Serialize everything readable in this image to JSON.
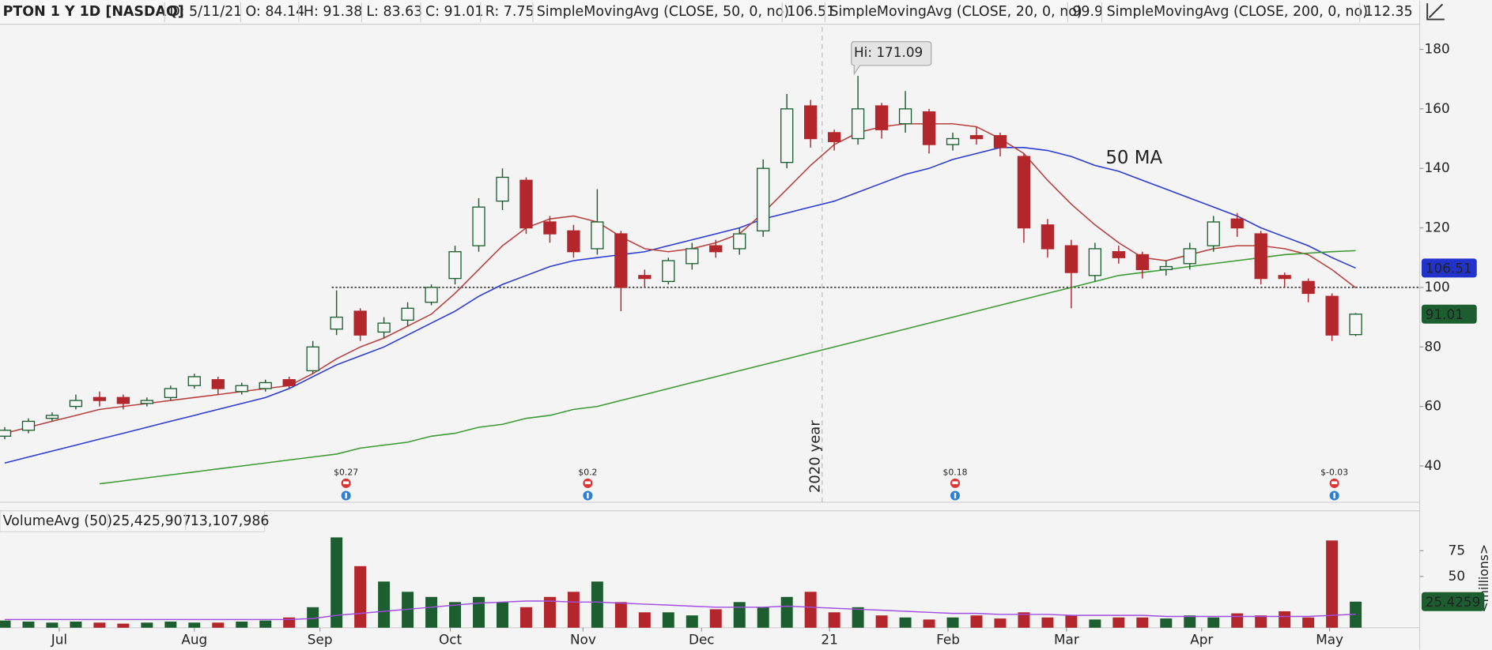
{
  "header": {
    "symbol": "PTON 1 Y 1D [NASDAQ]",
    "date": "D: 5/11/21",
    "open": "O: 84.14",
    "high": "H: 91.38",
    "low": "L: 83.63",
    "close": "C: 91.01",
    "range": "R: 7.75"
  },
  "chart_data": [
    {
      "type": "candlestick",
      "open": [
        50,
        52,
        56,
        60,
        63,
        63,
        61,
        63,
        67,
        69,
        65,
        66,
        69,
        72,
        86,
        92,
        85,
        89,
        95,
        103,
        114,
        129,
        136,
        122,
        119,
        113,
        118,
        104,
        102,
        108,
        114,
        113,
        119,
        142,
        161,
        152,
        150,
        161,
        155,
        159,
        148,
        151,
        151,
        144,
        121,
        114,
        104,
        112,
        111,
        106,
        108,
        114,
        123,
        118,
        104,
        102,
        97,
        84.14
      ],
      "high": [
        53,
        56,
        58,
        64,
        65,
        64,
        63,
        67,
        71,
        70,
        68,
        69,
        70,
        82,
        99,
        93,
        90,
        95,
        101,
        114,
        130,
        140,
        137,
        124,
        121,
        133,
        119,
        106,
        110,
        115,
        116,
        120,
        143,
        165,
        163,
        153,
        171.09,
        162,
        166,
        160,
        152,
        154,
        152,
        145,
        123,
        116,
        115,
        114,
        112,
        109,
        115,
        124,
        125,
        119,
        105,
        103,
        98,
        91.38
      ],
      "low": [
        49,
        51,
        55,
        59,
        60,
        59,
        60,
        62,
        66,
        64,
        64,
        65,
        66,
        71,
        84,
        82,
        83,
        87,
        94,
        101,
        112,
        126,
        118,
        115,
        110,
        111,
        92,
        100,
        101,
        106,
        110,
        111,
        117,
        140,
        147,
        146,
        148,
        150,
        152,
        145,
        146,
        148,
        144,
        115,
        110,
        93,
        102,
        108,
        103,
        104,
        106,
        112,
        117,
        101,
        100,
        95,
        82,
        83.63
      ],
      "close": [
        52,
        55,
        57,
        62,
        62,
        61,
        62,
        66,
        70,
        66,
        67,
        68,
        67,
        80,
        90,
        84,
        88,
        93,
        100,
        112,
        127,
        137,
        120,
        118,
        112,
        122,
        100,
        103,
        109,
        113,
        112,
        118,
        140,
        160,
        150,
        149,
        160,
        153,
        160,
        148,
        150,
        150,
        147,
        120,
        113,
        105,
        113,
        110,
        106,
        107,
        113,
        122,
        120,
        103,
        103,
        98,
        84,
        91.01
      ],
      "up_color": "#1d5e30",
      "down_color": "#b3262c",
      "lines": [
        {
          "name": "SimpleMovingAvg (CLOSE, 50, 0, no)",
          "color": "#2b3bd6",
          "values": [
            41,
            43,
            45,
            47,
            49,
            51,
            53,
            55,
            57,
            59,
            61,
            63,
            66,
            70,
            74,
            77,
            80,
            84,
            88,
            92,
            97,
            101,
            104,
            107,
            109,
            110,
            111,
            112,
            114,
            116,
            118,
            120,
            123,
            125,
            127,
            129,
            132,
            135,
            138,
            140,
            143,
            145,
            147,
            147,
            146,
            144,
            141,
            139,
            136,
            133,
            130,
            127,
            124,
            120,
            117,
            114,
            110,
            106.51
          ]
        },
        {
          "name": "SimpleMovingAvg (CLOSE, 20, 0, no)",
          "color": "#b8403f",
          "values": [
            51,
            53,
            55,
            57,
            59,
            60,
            61,
            62,
            63,
            64,
            65,
            66,
            67,
            71,
            76,
            80,
            83,
            87,
            91,
            98,
            106,
            114,
            120,
            123,
            124,
            122,
            117,
            113,
            112,
            113,
            115,
            118,
            125,
            133,
            141,
            148,
            152,
            154,
            155,
            155,
            155,
            154,
            150,
            145,
            136,
            128,
            121,
            115,
            110,
            109,
            111,
            113,
            114,
            114,
            113,
            111,
            106,
            99.9
          ]
        },
        {
          "name": "SimpleMovingAvg (CLOSE, 200, 0, no)",
          "color": "#3c9a34",
          "values": [
            null,
            null,
            null,
            null,
            34,
            35,
            36,
            37,
            38,
            39,
            40,
            41,
            42,
            43,
            44,
            46,
            47,
            48,
            50,
            51,
            53,
            54,
            56,
            57,
            59,
            60,
            62,
            64,
            66,
            68,
            70,
            72,
            74,
            76,
            78,
            80,
            82,
            84,
            86,
            88,
            90,
            92,
            94,
            96,
            98,
            100,
            102,
            104,
            105,
            106,
            107,
            108,
            109,
            110,
            111,
            111.5,
            112,
            112.35
          ]
        }
      ],
      "xlim": [
        -0.2,
        59.7
      ],
      "ylim": [
        27.8,
        187.5
      ],
      "yticks": [
        40,
        60,
        80,
        100,
        120,
        140,
        160,
        180
      ],
      "level": 100,
      "hi_label": "Hi: 171.09",
      "ma_label": "50 MA",
      "year_label": "2020 year",
      "earnings": [
        "$0.27",
        "$0.2",
        "$0.18",
        "$-0.03"
      ]
    },
    {
      "type": "bar",
      "title": "VolumeAvg (50)",
      "volume_label": "25,425,907",
      "avg_label": "13,107,986",
      "values": [
        7,
        6,
        5,
        6,
        5,
        4,
        5,
        6,
        5,
        5,
        6,
        7,
        10,
        20,
        88,
        60,
        45,
        35,
        30,
        25,
        30,
        25,
        20,
        30,
        35,
        45,
        25,
        15,
        15,
        12,
        18,
        25,
        20,
        30,
        35,
        15,
        20,
        12,
        10,
        8,
        10,
        12,
        9,
        15,
        10,
        12,
        8,
        10,
        10,
        9,
        12,
        10,
        14,
        12,
        16,
        10,
        85,
        25.4259
      ],
      "avg": {
        "color": "#a04de0",
        "values": [
          8,
          8,
          8,
          8,
          8,
          8,
          8,
          8,
          8,
          8,
          8,
          8,
          8,
          9,
          12,
          14,
          16,
          18,
          20,
          22,
          24,
          25,
          26,
          26,
          25,
          25,
          24,
          23,
          22,
          21,
          20,
          20,
          20,
          21,
          20,
          19,
          18,
          17,
          16,
          15,
          14,
          14,
          13,
          13,
          13,
          12,
          12,
          12,
          12,
          11,
          11,
          11,
          11,
          11,
          11,
          11,
          12,
          13.107986
        ]
      },
      "xlim": [
        -0.2,
        59.7
      ],
      "ylim": [
        0,
        100
      ],
      "yticks": [
        50,
        75
      ],
      "y_label": "<millions>",
      "xticks": [
        {
          "value": 2.3,
          "label": "Jul"
        },
        {
          "value": 8.0,
          "label": "Aug"
        },
        {
          "value": 13.3,
          "label": "Sep"
        },
        {
          "value": 18.8,
          "label": "Oct"
        },
        {
          "value": 24.4,
          "label": "Nov"
        },
        {
          "value": 29.4,
          "label": "Dec"
        },
        {
          "value": 34.8,
          "label": "21"
        },
        {
          "value": 39.8,
          "label": "Feb"
        },
        {
          "value": 44.8,
          "label": "Mar"
        },
        {
          "value": 50.5,
          "label": "Apr"
        },
        {
          "value": 55.9,
          "label": "May"
        }
      ]
    }
  ]
}
